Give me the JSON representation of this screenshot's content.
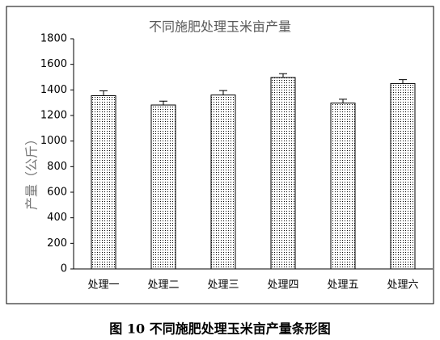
{
  "chart_data": {
    "type": "bar",
    "title": "不同施肥处理玉米亩产量",
    "y_label": "产量（公斤）",
    "categories": [
      "处理一",
      "处理二",
      "处理三",
      "处理四",
      "处理五",
      "处理六"
    ],
    "values": [
      1355,
      1282,
      1360,
      1497,
      1297,
      1450
    ],
    "errors": [
      38,
      30,
      35,
      30,
      30,
      30
    ],
    "color": "#000000",
    "ylim": [
      0,
      1800
    ],
    "yticks": [
      0,
      200,
      400,
      600,
      800,
      1000,
      1200,
      1400,
      1600,
      1800
    ],
    "grid": false
  },
  "caption": "图 10 不同施肥处理玉米亩产量条形图"
}
